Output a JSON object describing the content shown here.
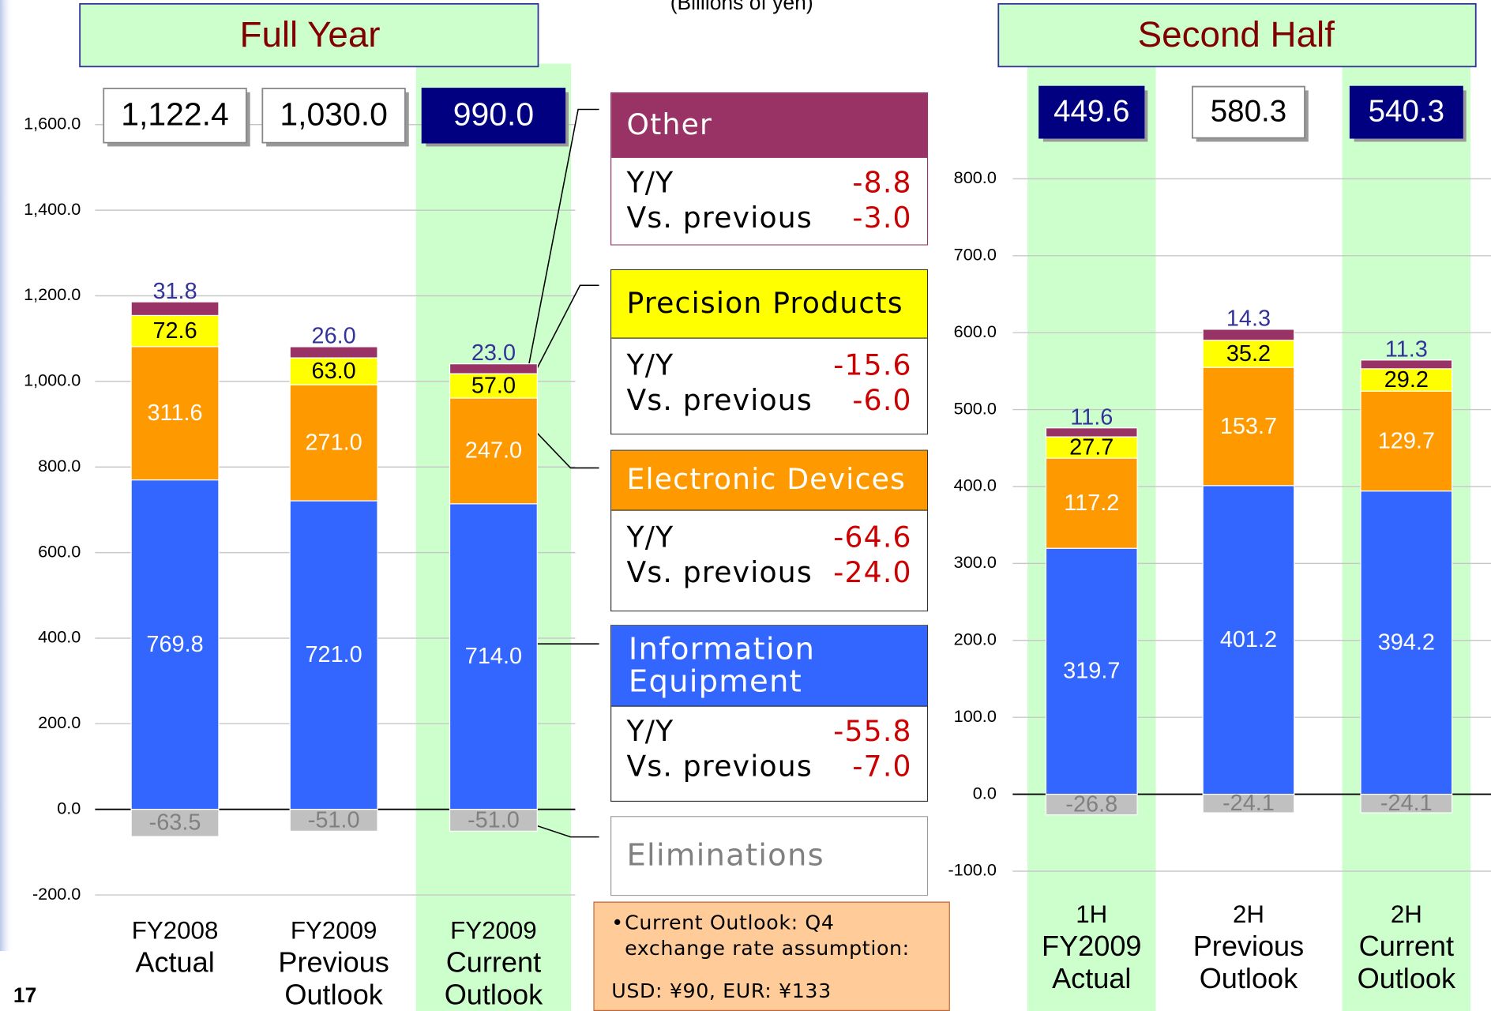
{
  "chart_data": [
    {
      "type": "stacked_bar",
      "title": "Full Year",
      "categories": [
        [
          "FY2008",
          "Actual"
        ],
        [
          "FY2009",
          "Previous",
          "Outlook"
        ],
        [
          "FY2009",
          "Current",
          "Outlook"
        ]
      ],
      "series": [
        {
          "name": "Information Equipment",
          "color": "#3366ff",
          "values": [
            769.8,
            721.0,
            714.0
          ],
          "value_labels": [
            "769.8",
            "721.0",
            "714.0"
          ],
          "changes": [
            "-55.8",
            "-7.0"
          ]
        },
        {
          "name": "Electronic Devices",
          "color": "#ff9900",
          "values": [
            311.6,
            271.0,
            247.0
          ],
          "value_labels": [
            "311.6",
            "271.0",
            "247.0"
          ],
          "changes": [
            "-64.6",
            "-24.0"
          ]
        },
        {
          "name": "Precision Products",
          "color": "#ffff00",
          "values": [
            72.6,
            63.0,
            57.0
          ],
          "value_labels": [
            "72.6",
            "63.0",
            "57.0"
          ],
          "changes": [
            "-15.6",
            "-6.0"
          ]
        },
        {
          "name": "Other",
          "color": "#993366",
          "values": [
            31.8,
            26.0,
            23.0
          ],
          "value_labels": [
            "31.8",
            "26.0",
            "23.0"
          ],
          "changes": [
            "-8.8",
            "-3.0"
          ]
        },
        {
          "name": "Eliminations",
          "color": "#c0c0c0",
          "values": [
            -63.5,
            -51.0,
            -51.0
          ],
          "value_labels": [
            "-63.5",
            "-51.0",
            "-51.0"
          ]
        }
      ],
      "totals": {
        "values": [
          1122.4,
          1030.0,
          990.0
        ],
        "value_labels": [
          "1,122.4",
          "1,030.0",
          "990.0"
        ]
      },
      "highlight": [
        2
      ],
      "ylim": [
        -200,
        1600
      ],
      "yticks": [
        {
          "value": -200,
          "label": "-200.0"
        },
        {
          "value": 0,
          "label": "0.0"
        },
        {
          "value": 200,
          "label": "200.0"
        },
        {
          "value": 400,
          "label": "400.0"
        },
        {
          "value": 600,
          "label": "600.0"
        },
        {
          "value": 800,
          "label": "800.0"
        },
        {
          "value": 1000,
          "label": "1,000.0"
        },
        {
          "value": 1200,
          "label": "1,200.0"
        },
        {
          "value": 1400,
          "label": "1,400.0"
        },
        {
          "value": 1600,
          "label": "1,600.0"
        }
      ],
      "grid": true
    },
    {
      "type": "stacked_bar",
      "title": "Second Half",
      "categories": [
        [
          "1H",
          "FY2009",
          "Actual"
        ],
        [
          "2H",
          "Previous",
          "Outlook"
        ],
        [
          "2H",
          "Current",
          "Outlook"
        ]
      ],
      "series": [
        {
          "name": "Information Equipment",
          "color": "#3366ff",
          "values": [
            319.7,
            401.2,
            394.2
          ],
          "value_labels": [
            "319.7",
            "401.2",
            "394.2"
          ]
        },
        {
          "name": "Electronic Devices",
          "color": "#ff9900",
          "values": [
            117.2,
            153.7,
            129.7
          ],
          "value_labels": [
            "117.2",
            "153.7",
            "129.7"
          ]
        },
        {
          "name": "Precision Products",
          "color": "#ffff00",
          "values": [
            27.7,
            35.2,
            29.2
          ],
          "value_labels": [
            "27.7",
            "35.2",
            "29.2"
          ]
        },
        {
          "name": "Other",
          "color": "#993366",
          "values": [
            11.6,
            14.3,
            11.3
          ],
          "value_labels": [
            "11.6",
            "14.3",
            "11.3"
          ]
        },
        {
          "name": "Eliminations",
          "color": "#c0c0c0",
          "values": [
            -26.8,
            -24.1,
            -24.1
          ],
          "value_labels": [
            "-26.8",
            "-24.1",
            "-24.1"
          ]
        }
      ],
      "totals": {
        "values": [
          449.6,
          580.3,
          540.3
        ],
        "value_labels": [
          "449.6",
          "580.3",
          "540.3"
        ]
      },
      "highlight": [
        0,
        2
      ],
      "ylim": [
        -100,
        800
      ],
      "yticks": [
        {
          "value": -100,
          "label": "-100.0"
        },
        {
          "value": 0,
          "label": "0.0"
        },
        {
          "value": 100,
          "label": "100.0"
        },
        {
          "value": 200,
          "label": "200.0"
        },
        {
          "value": 300,
          "label": "300.0"
        },
        {
          "value": 400,
          "label": "400.0"
        },
        {
          "value": 500,
          "label": "500.0"
        },
        {
          "value": 600,
          "label": "600.0"
        },
        {
          "value": 700,
          "label": "700.0"
        },
        {
          "value": 800,
          "label": "800.0"
        }
      ],
      "grid": true
    }
  ],
  "unit": "(Billions of yen)",
  "row_labels": [
    "Y/Y",
    "Vs. previous"
  ],
  "note": [
    "Current Outlook: Q4 exchange rate assumption:",
    "USD: ¥90, EUR: ¥133"
  ],
  "page_number": "17"
}
